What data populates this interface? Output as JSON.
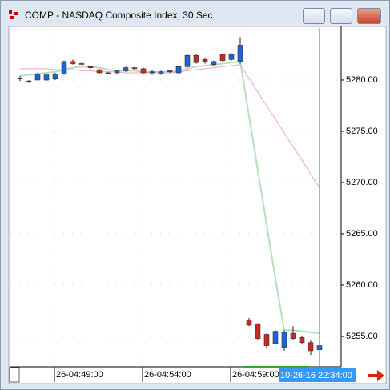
{
  "window": {
    "title": "COMP - NASDAQ Composite Index, 30 Sec"
  },
  "chart_data": {
    "type": "candlestick",
    "categories": [
      null,
      null,
      null,
      null,
      "26-04:49:00",
      null,
      null,
      null,
      null,
      null,
      null,
      null,
      null,
      null,
      "26-04:54:00",
      null,
      null,
      null,
      null,
      null,
      null,
      null,
      null,
      null,
      "26-04:59:00",
      null,
      null,
      null,
      null,
      null,
      null,
      null,
      null,
      null,
      null
    ],
    "cursor_label": "10-26-16 22:34:00",
    "open": [
      5280.1,
      5279.8,
      5280.0,
      5280.0,
      5280.1,
      5280.6,
      5281.8,
      5281.6,
      5281.3,
      5281.0,
      5280.7,
      5280.7,
      5280.9,
      5281.2,
      5281.1,
      5280.7,
      5280.6,
      5280.8,
      5280.7,
      5281.3,
      5282.4,
      5282.0,
      5281.5,
      5282.5,
      5282.0,
      5281.8,
      5256.6,
      5256.2,
      5255.2,
      5254.3,
      5253.9,
      5255.3,
      5254.9,
      5254.4,
      5253.7
    ],
    "high": [
      5280.4,
      5280.0,
      5280.7,
      5280.6,
      5280.7,
      5281.9,
      5282.0,
      5281.7,
      5281.4,
      5281.1,
      5280.8,
      5281.0,
      5281.3,
      5281.3,
      5281.2,
      5281.0,
      5280.9,
      5281.0,
      5281.4,
      5282.5,
      5282.5,
      5282.2,
      5281.9,
      5282.6,
      5282.6,
      5284.2,
      5256.8,
      5256.3,
      5255.3,
      5255.6,
      5255.6,
      5256.0,
      5255.1,
      5254.6,
      5254.6
    ],
    "low": [
      5279.9,
      5279.7,
      5280.0,
      5279.9,
      5280.0,
      5280.5,
      5281.5,
      5281.5,
      5281.1,
      5280.6,
      5280.6,
      5280.6,
      5280.8,
      5281.0,
      5280.6,
      5280.5,
      5280.5,
      5280.7,
      5280.6,
      5281.2,
      5281.6,
      5281.6,
      5281.4,
      5281.8,
      5281.9,
      5281.6,
      5256.0,
      5254.6,
      5253.8,
      5254.2,
      5253.6,
      5254.6,
      5254.2,
      5253.2,
      5253.4
    ],
    "close": [
      5280.2,
      5279.9,
      5280.6,
      5280.5,
      5280.6,
      5281.8,
      5281.6,
      5281.55,
      5281.2,
      5280.7,
      5280.7,
      5280.9,
      5281.2,
      5281.1,
      5280.7,
      5280.8,
      5280.8,
      5280.9,
      5281.3,
      5282.4,
      5281.7,
      5281.8,
      5281.8,
      5281.9,
      5282.5,
      5283.4,
      5256.1,
      5254.8,
      5254.1,
      5255.5,
      5255.4,
      5254.8,
      5254.4,
      5253.6,
      5254.1
    ],
    "up_color": "#1e62d6",
    "down_color": "#c62a22",
    "overlays": [
      {
        "color": "#b7dfb7",
        "values": [
          5280.4,
          5280.5,
          5280.6,
          5280.7,
          5280.8,
          5281.0,
          5281.2,
          5281.3,
          5281.3,
          5281.2,
          5281.0,
          5280.9,
          5280.9,
          5280.9,
          5280.8,
          5280.8,
          5280.8,
          5280.8,
          5280.9,
          5281.1,
          5281.3,
          5281.4,
          5281.5,
          5281.6,
          5281.7,
          5281.8,
          5276.5,
          5271.2,
          5265.9,
          5260.6,
          5255.6,
          5255.6,
          5255.5,
          5255.4,
          5255.3
        ]
      },
      {
        "color": "#f4a0c8",
        "values": [
          5281.1,
          5281.1,
          5281.1,
          5281.1,
          5281.0,
          5281.0,
          5281.0,
          5280.9,
          5280.9,
          5280.8,
          5280.8,
          5280.8,
          5280.7,
          5280.7,
          5280.7,
          5280.7,
          5280.7,
          5280.7,
          5280.8,
          5280.9,
          5281.0,
          5281.1,
          5281.2,
          5281.3,
          5281.4,
          5281.5,
          5280.2,
          5278.8,
          5277.5,
          5276.2,
          5274.8,
          5273.5,
          5272.2,
          5270.8,
          5269.5
        ]
      }
    ],
    "ylim": [
      5252.19,
      5285.23
    ],
    "yticks": [
      {
        "value": 5255,
        "label": "5255.00"
      },
      {
        "value": 5260,
        "label": "5260.00"
      },
      {
        "value": 5265,
        "label": "5265.00"
      },
      {
        "value": 5270,
        "label": "5270.00"
      },
      {
        "value": 5275,
        "label": "5275.00"
      },
      {
        "value": 5280,
        "label": "5280.00"
      }
    ],
    "grid": true
  }
}
